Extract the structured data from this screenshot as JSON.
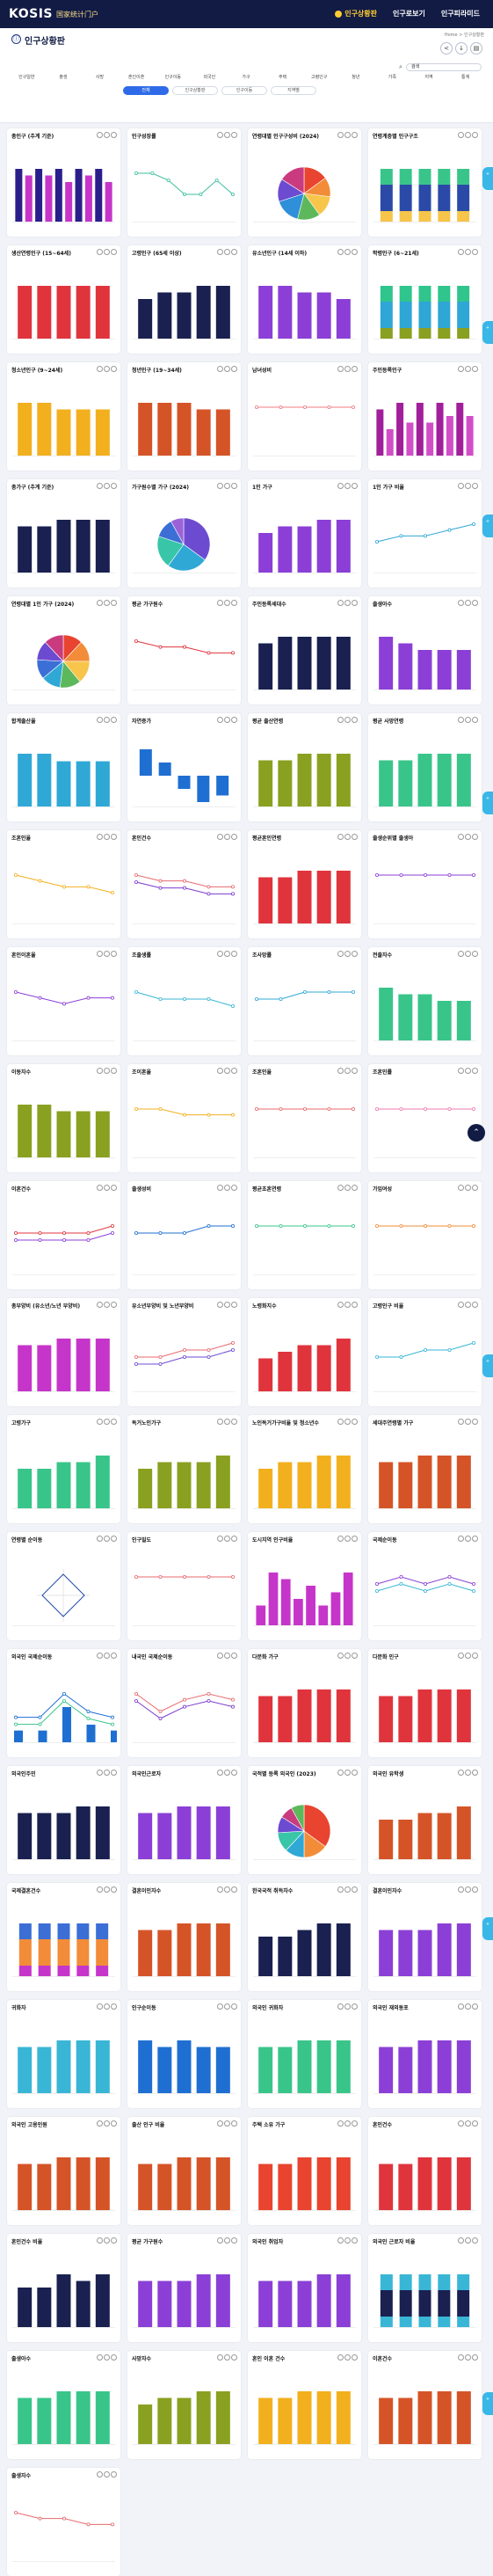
{
  "header": {
    "logo": "KOSIS",
    "slogan": "国家统计门户",
    "nav": [
      "인구상황판",
      "인구로보기",
      "인구피라미드"
    ]
  },
  "top": {
    "breadcrumb": "Home > 인구상황판",
    "title": "인구상황판",
    "search_placeholder": "검색"
  },
  "tabs": [
    "인구일반",
    "출생",
    "사망",
    "혼인이혼",
    "인구이동",
    "외국인",
    "가구",
    "주택",
    "고령인구",
    "청년",
    "가족",
    "지역",
    "통계"
  ],
  "chips": [
    "전체",
    "인구상황판",
    "인구이동",
    "지역별"
  ],
  "colors": {
    "navy": "#111b44",
    "accent": "#ffcc33",
    "blue": "#2f6be8"
  },
  "cards": [
    {
      "title": "총인구 (추계 기준)",
      "type": "bar",
      "colors": [
        "#2a1e8a",
        "#c635c9"
      ],
      "values": [
        8,
        7,
        8,
        7,
        8,
        6,
        8,
        7,
        8,
        6
      ]
    },
    {
      "title": "인구성장률",
      "type": "line",
      "colors": [
        "#3bbf9f"
      ],
      "values": [
        5,
        5,
        4,
        2,
        2,
        4,
        2
      ]
    },
    {
      "title": "연령대별 인구구성비 (2024)",
      "type": "pie",
      "colors": [
        "#e8442f",
        "#f28c38",
        "#f6c54a",
        "#5db85c",
        "#2f8fd8",
        "#6c4bd1",
        "#c93b7e"
      ],
      "values": [
        15,
        12,
        13,
        14,
        16,
        14,
        16
      ]
    },
    {
      "title": "연령계층별 인구구조",
      "type": "stack",
      "colors": [
        "#f6c54a",
        "#2b4aa8",
        "#39c58a"
      ],
      "values": [
        5,
        5,
        5,
        5,
        5
      ]
    },
    {
      "title": "생산연령인구 (15~64세)",
      "type": "bar",
      "colors": [
        "#e0343d"
      ],
      "values": [
        8,
        8,
        8,
        8,
        8
      ]
    },
    {
      "title": "고령인구 (65세 이상)",
      "type": "bar",
      "colors": [
        "#1a2050"
      ],
      "values": [
        6,
        7,
        7,
        8,
        8
      ]
    },
    {
      "title": "유소년인구 (14세 이하)",
      "type": "bar",
      "colors": [
        "#8b3fd6"
      ],
      "values": [
        8,
        8,
        7,
        7,
        6
      ]
    },
    {
      "title": "학령인구 (6~21세)",
      "type": "stack",
      "colors": [
        "#8aa020",
        "#2ea6d6",
        "#2fc58c"
      ],
      "values": [
        5,
        5,
        5,
        5,
        5
      ]
    },
    {
      "title": "청소년인구 (9~24세)",
      "type": "bar",
      "colors": [
        "#f2b01e"
      ],
      "values": [
        8,
        8,
        7,
        7,
        7
      ]
    },
    {
      "title": "청년인구 (19~34세)",
      "type": "bar",
      "colors": [
        "#d55427"
      ],
      "values": [
        8,
        8,
        8,
        7,
        7
      ]
    },
    {
      "title": "남녀성비",
      "type": "line",
      "colors": [
        "#f07b80"
      ],
      "values": [
        5,
        5,
        5,
        5,
        5
      ]
    },
    {
      "title": "주민등록인구",
      "type": "bar",
      "colors": [
        "#a11f9a",
        "#d24ec8"
      ],
      "values": [
        7,
        4,
        8,
        5,
        8,
        5,
        8,
        6,
        8,
        6
      ]
    },
    {
      "title": "총가구 (추계 기준)",
      "type": "bar",
      "colors": [
        "#1a2050"
      ],
      "values": [
        7,
        7,
        8,
        8,
        8
      ]
    },
    {
      "title": "가구원수별 가구 (2024)",
      "type": "pie",
      "colors": [
        "#6c4bd1",
        "#2fa8d6",
        "#39c5a8",
        "#3b6fd6",
        "#9b62d8"
      ],
      "values": [
        35,
        25,
        20,
        12,
        8
      ]
    },
    {
      "title": "1인 가구",
      "type": "bar",
      "colors": [
        "#8b3fd6"
      ],
      "values": [
        6,
        7,
        7,
        8,
        8
      ]
    },
    {
      "title": "1인 가구 비율",
      "type": "line",
      "colors": [
        "#2fa8d6"
      ],
      "values": [
        3,
        4,
        4,
        5,
        6
      ]
    },
    {
      "title": "연령대별 1인 가구 (2024)",
      "type": "pie",
      "colors": [
        "#e8442f",
        "#f28c38",
        "#f6c54a",
        "#5db85c",
        "#2fa8d6",
        "#3b6fd6",
        "#6c4bd1",
        "#c93b7e"
      ],
      "values": [
        12,
        13,
        14,
        13,
        12,
        12,
        12,
        12
      ]
    },
    {
      "title": "평균 가구원수",
      "type": "line",
      "colors": [
        "#e0343d"
      ],
      "values": [
        6,
        5,
        5,
        4,
        4
      ]
    },
    {
      "title": "주민등록세대수",
      "type": "bar",
      "colors": [
        "#1a2050"
      ],
      "values": [
        7,
        8,
        8,
        8,
        8
      ]
    },
    {
      "title": "출생아수",
      "type": "bar",
      "colors": [
        "#8b3fd6"
      ],
      "values": [
        8,
        7,
        6,
        6,
        6
      ]
    },
    {
      "title": "합계출산율",
      "type": "bar",
      "colors": [
        "#2fa8d6"
      ],
      "values": [
        7,
        7,
        6,
        6,
        6
      ]
    },
    {
      "title": "자연증가",
      "type": "neg",
      "colors": [
        "#1f6fd2"
      ],
      "values": [
        4,
        2,
        -2,
        -4,
        -3
      ]
    },
    {
      "title": "평균 출산연령",
      "type": "bar",
      "colors": [
        "#8aa020"
      ],
      "values": [
        7,
        7,
        8,
        8,
        8
      ]
    },
    {
      "title": "평균 사망연령",
      "type": "bar",
      "colors": [
        "#39c58a"
      ],
      "values": [
        7,
        7,
        8,
        8,
        8
      ]
    },
    {
      "title": "조혼인율",
      "type": "line",
      "colors": [
        "#f2b01e"
      ],
      "values": [
        6,
        5,
        4,
        4,
        3
      ]
    },
    {
      "title": "혼인건수",
      "type": "line",
      "colors": [
        "#e86a6e",
        "#7a3ad0"
      ],
      "values": [
        6,
        5,
        5,
        4,
        4
      ]
    },
    {
      "title": "평균혼인연령",
      "type": "bar",
      "colors": [
        "#e0343d"
      ],
      "values": [
        7,
        7,
        8,
        8,
        8
      ]
    },
    {
      "title": "출생순위별 출생아",
      "type": "line",
      "colors": [
        "#8b3fd6"
      ],
      "values": [
        5,
        5,
        5,
        5,
        5
      ]
    },
    {
      "title": "혼인이혼율",
      "type": "line",
      "colors": [
        "#8b3fd6"
      ],
      "values": [
        6,
        5,
        4,
        5,
        5
      ]
    },
    {
      "title": "조출생률",
      "type": "line",
      "colors": [
        "#39b6d6"
      ],
      "values": [
        5,
        4,
        4,
        4,
        3
      ]
    },
    {
      "title": "조사망률",
      "type": "line",
      "colors": [
        "#2fa8d6"
      ],
      "values": [
        4,
        4,
        5,
        5,
        5
      ]
    },
    {
      "title": "전출자수",
      "type": "bar",
      "colors": [
        "#39c58a"
      ],
      "values": [
        8,
        7,
        7,
        6,
        6
      ]
    },
    {
      "title": "이동자수",
      "type": "bar",
      "colors": [
        "#8aa020"
      ],
      "values": [
        8,
        8,
        7,
        7,
        7
      ]
    },
    {
      "title": "조이혼율",
      "type": "line",
      "colors": [
        "#f2b01e"
      ],
      "values": [
        6,
        6,
        5,
        5,
        5
      ]
    },
    {
      "title": "조혼인율",
      "type": "line",
      "colors": [
        "#e86a6e"
      ],
      "values": [
        5,
        5,
        5,
        5,
        5
      ]
    },
    {
      "title": "조혼인률",
      "type": "line",
      "colors": [
        "#f07bb0"
      ],
      "values": [
        5,
        5,
        5,
        5,
        5
      ]
    },
    {
      "title": "이혼건수",
      "type": "line",
      "colors": [
        "#e0343d",
        "#8b3fd6"
      ],
      "values": [
        4,
        4,
        4,
        4,
        5
      ]
    },
    {
      "title": "출생성비",
      "type": "line",
      "colors": [
        "#1f6fd2"
      ],
      "values": [
        4,
        4,
        4,
        5,
        5
      ]
    },
    {
      "title": "평균초혼연령",
      "type": "line",
      "colors": [
        "#39c58a"
      ],
      "values": [
        4,
        4,
        4,
        4,
        4
      ]
    },
    {
      "title": "가임여성",
      "type": "line",
      "colors": [
        "#f28c38"
      ],
      "values": [
        4,
        4,
        4,
        4,
        4
      ]
    },
    {
      "title": "총부양비 (유소년/노년 부양비)",
      "type": "bar",
      "colors": [
        "#c635c9"
      ],
      "values": [
        7,
        7,
        8,
        8,
        8
      ]
    },
    {
      "title": "유소년부양비 및 노년부양비",
      "type": "line",
      "colors": [
        "#e86a6e",
        "#6c4bd1"
      ],
      "values": [
        3,
        3,
        4,
        4,
        5
      ]
    },
    {
      "title": "노령화지수",
      "type": "bar",
      "colors": [
        "#e0343d"
      ],
      "values": [
        5,
        6,
        7,
        7,
        8
      ]
    },
    {
      "title": "고령인구 비율",
      "type": "line",
      "colors": [
        "#39b6d6"
      ],
      "values": [
        3,
        3,
        4,
        4,
        5
      ]
    },
    {
      "title": "고령가구",
      "type": "bar",
      "colors": [
        "#39c58a"
      ],
      "values": [
        6,
        6,
        7,
        7,
        8
      ]
    },
    {
      "title": "독거노인가구",
      "type": "bar",
      "colors": [
        "#8aa020"
      ],
      "values": [
        6,
        7,
        7,
        7,
        8
      ]
    },
    {
      "title": "노인독거가구비율 및 청소년수",
      "type": "bar",
      "colors": [
        "#f2b01e"
      ],
      "values": [
        6,
        7,
        7,
        8,
        8
      ]
    },
    {
      "title": "세대주연령별 가구",
      "type": "bar",
      "colors": [
        "#d55427"
      ],
      "values": [
        7,
        7,
        8,
        8,
        8
      ]
    },
    {
      "title": "연령별 순이동",
      "type": "radar",
      "colors": [
        "#1f4aa8"
      ],
      "values": [
        5,
        5,
        5,
        5
      ]
    },
    {
      "title": "인구밀도",
      "type": "line",
      "colors": [
        "#e86a6e"
      ],
      "values": [
        5,
        5,
        5,
        5,
        5
      ]
    },
    {
      "title": "도시지역 인구비율",
      "type": "bar",
      "colors": [
        "#c635c9"
      ],
      "values": [
        3,
        8,
        7,
        4,
        6,
        3,
        5,
        8
      ]
    },
    {
      "title": "국제순이동",
      "type": "line",
      "colors": [
        "#8b3fd6",
        "#39b6d6"
      ],
      "values": [
        4,
        5,
        4,
        5,
        4
      ]
    },
    {
      "title": "외국인 국제순이동",
      "type": "mixed",
      "colors": [
        "#1f6fd2",
        "#39c58a"
      ],
      "values": [
        2,
        2,
        6,
        3,
        2
      ]
    },
    {
      "title": "내국인 국제순이동",
      "type": "line",
      "colors": [
        "#e86a6e",
        "#7a3ad0"
      ],
      "values": [
        6,
        3,
        5,
        6,
        5
      ]
    },
    {
      "title": "다문화 가구",
      "type": "bar",
      "colors": [
        "#e0343d"
      ],
      "values": [
        7,
        7,
        8,
        8,
        8
      ]
    },
    {
      "title": "다문화 인구",
      "type": "bar",
      "colors": [
        "#e0343d"
      ],
      "values": [
        7,
        7,
        8,
        8,
        8
      ]
    },
    {
      "title": "외국인주민",
      "type": "bar",
      "colors": [
        "#1a2050"
      ],
      "values": [
        7,
        7,
        7,
        8,
        8
      ]
    },
    {
      "title": "외국인근로자",
      "type": "bar",
      "colors": [
        "#8b3fd6"
      ],
      "values": [
        7,
        7,
        8,
        8,
        8
      ]
    },
    {
      "title": "국적별 등록 외국인 (2023)",
      "type": "pie",
      "colors": [
        "#e8442f",
        "#f28c38",
        "#2fa8d6",
        "#39c5a8",
        "#6c4bd1",
        "#c93b7e",
        "#5db85c"
      ],
      "values": [
        35,
        15,
        12,
        12,
        10,
        8,
        8
      ]
    },
    {
      "title": "외국인 유학생",
      "type": "bar",
      "colors": [
        "#d55427"
      ],
      "values": [
        6,
        6,
        7,
        7,
        8
      ]
    },
    {
      "title": "국제결혼건수",
      "type": "stack",
      "colors": [
        "#c635c9",
        "#f28c38",
        "#3b6fd6"
      ],
      "values": [
        5,
        5,
        5,
        5,
        5
      ]
    },
    {
      "title": "결혼이민자수",
      "type": "bar",
      "colors": [
        "#d55427"
      ],
      "values": [
        7,
        7,
        8,
        8,
        8
      ]
    },
    {
      "title": "한국국적 취득자수",
      "type": "bar",
      "colors": [
        "#1a2050"
      ],
      "values": [
        6,
        6,
        7,
        8,
        8
      ]
    },
    {
      "title": "결혼이민자수",
      "type": "bar",
      "colors": [
        "#8b3fd6"
      ],
      "values": [
        7,
        7,
        7,
        8,
        8
      ]
    },
    {
      "title": "귀화자",
      "type": "bar",
      "colors": [
        "#39b6d6"
      ],
      "values": [
        7,
        7,
        8,
        8,
        8
      ]
    },
    {
      "title": "인구순이동",
      "type": "bar",
      "colors": [
        "#1f6fd2"
      ],
      "values": [
        8,
        7,
        8,
        7,
        7
      ]
    },
    {
      "title": "외국인 귀화자",
      "type": "bar",
      "colors": [
        "#39c58a"
      ],
      "values": [
        7,
        7,
        8,
        8,
        8
      ]
    },
    {
      "title": "외국인 재외동포",
      "type": "bar",
      "colors": [
        "#8b3fd6"
      ],
      "values": [
        7,
        7,
        8,
        8,
        8
      ]
    },
    {
      "title": "외국인 고용인원",
      "type": "bar",
      "colors": [
        "#d55427"
      ],
      "values": [
        7,
        7,
        8,
        8,
        8
      ]
    },
    {
      "title": "출산 인구 비율",
      "type": "bar",
      "colors": [
        "#d55427"
      ],
      "values": [
        7,
        7,
        8,
        8,
        8
      ]
    },
    {
      "title": "주택 소유 가구",
      "type": "bar",
      "colors": [
        "#e8442f"
      ],
      "values": [
        7,
        7,
        8,
        8,
        8
      ]
    },
    {
      "title": "혼인건수",
      "type": "bar",
      "colors": [
        "#e0343d"
      ],
      "values": [
        7,
        7,
        8,
        8,
        8
      ]
    },
    {
      "title": "혼인건수 비율",
      "type": "bar",
      "colors": [
        "#1a2050"
      ],
      "values": [
        6,
        6,
        8,
        7,
        8
      ]
    },
    {
      "title": "평균 가구원수",
      "type": "bar",
      "colors": [
        "#8b3fd6"
      ],
      "values": [
        7,
        7,
        7,
        8,
        8
      ]
    },
    {
      "title": "외국인 취업자",
      "type": "bar",
      "colors": [
        "#8b3fd6"
      ],
      "values": [
        7,
        7,
        7,
        8,
        8
      ]
    },
    {
      "title": "외국인 근로자 비율",
      "type": "stack",
      "colors": [
        "#39b6d6",
        "#1a2050"
      ],
      "values": [
        5,
        5,
        5,
        5,
        5
      ]
    },
    {
      "title": "출생아수",
      "type": "bar",
      "colors": [
        "#39c58a"
      ],
      "values": [
        7,
        7,
        8,
        8,
        8
      ]
    },
    {
      "title": "사망자수",
      "type": "bar",
      "colors": [
        "#8aa020"
      ],
      "values": [
        6,
        7,
        7,
        8,
        8
      ]
    },
    {
      "title": "혼인 이혼 건수",
      "type": "bar",
      "colors": [
        "#f2b01e"
      ],
      "values": [
        7,
        7,
        8,
        8,
        8
      ]
    },
    {
      "title": "이혼건수",
      "type": "bar",
      "colors": [
        "#d55427"
      ],
      "values": [
        7,
        7,
        8,
        8,
        8
      ]
    },
    {
      "title": "출생자수",
      "type": "line",
      "colors": [
        "#e86a6e"
      ],
      "values": [
        6,
        5,
        5,
        4,
        4
      ]
    }
  ]
}
